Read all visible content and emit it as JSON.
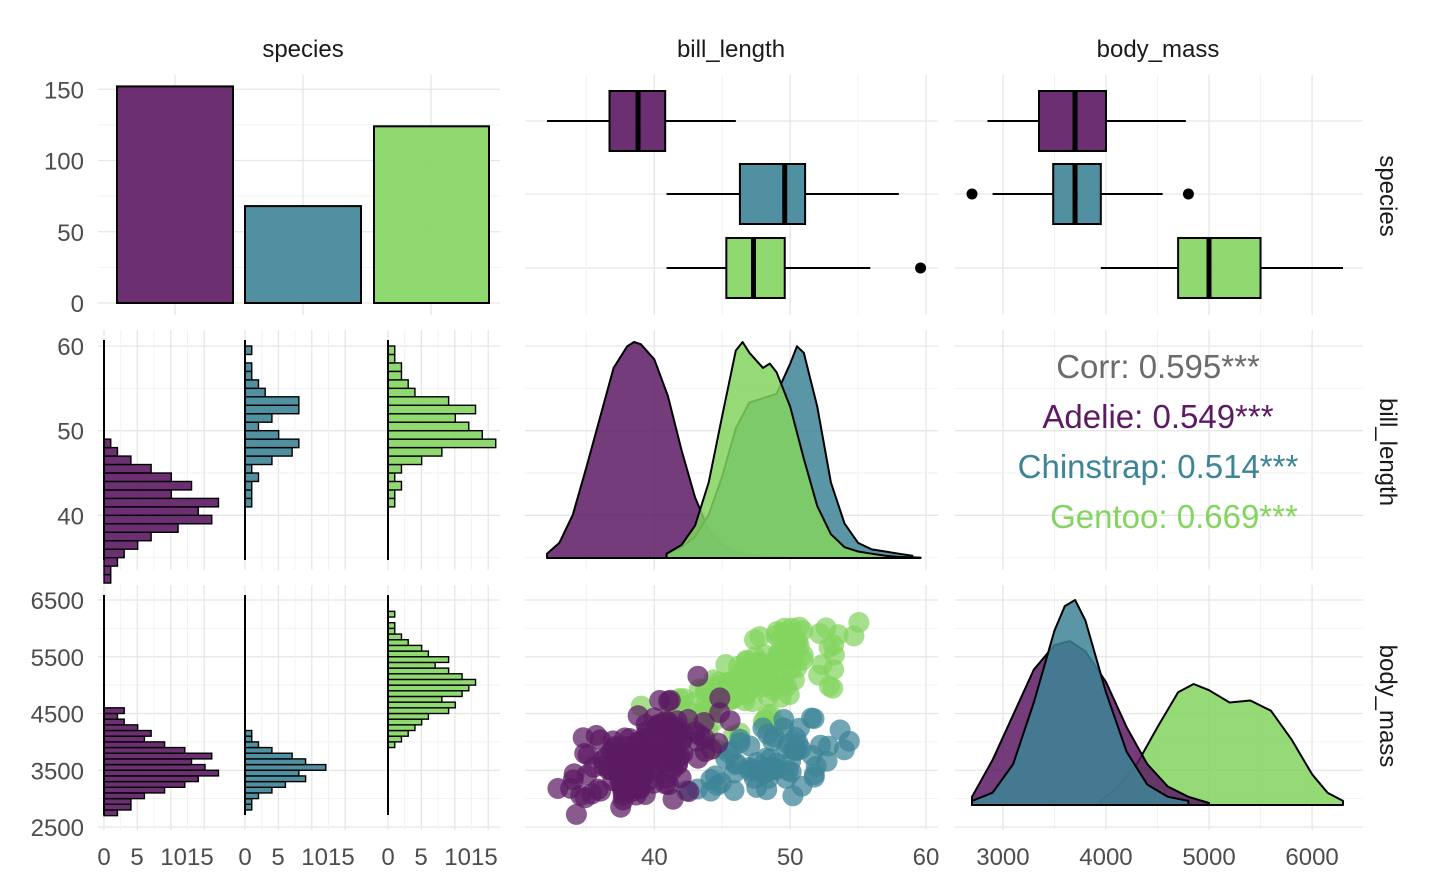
{
  "chart_data": {
    "type": "pairs",
    "variables": [
      "species",
      "bill_length",
      "body_mass"
    ],
    "species": [
      {
        "name": "Adelie",
        "color": "#5c1a63",
        "light": "#672b6e"
      },
      {
        "name": "Chinstrap",
        "color": "#3d8497",
        "light": "#4f8ea3"
      },
      {
        "name": "Gentoo",
        "color": "#84d460",
        "light": "#90d86b"
      }
    ],
    "species_counts": [
      152,
      68,
      124
    ],
    "y_ticks": {
      "species_count": [
        "0",
        "50",
        "100",
        "150"
      ],
      "bill_length": [
        "40",
        "50",
        "60"
      ],
      "body_mass": [
        "2500",
        "3500",
        "4500",
        "5500",
        "6500"
      ]
    },
    "x_ticks": {
      "hist": [
        "0",
        "5",
        "1015"
      ],
      "bill_length": [
        "40",
        "50",
        "60"
      ],
      "body_mass": [
        "3000",
        "4000",
        "5000",
        "6000"
      ]
    },
    "boxplots": {
      "bill_length": [
        {
          "species": "Adelie",
          "whisker_low": 32.1,
          "q1": 36.7,
          "median": 38.8,
          "q3": 40.8,
          "whisker_high": 46.0,
          "outliers": []
        },
        {
          "species": "Chinstrap",
          "whisker_low": 40.9,
          "q1": 46.3,
          "median": 49.6,
          "q3": 51.1,
          "whisker_high": 58.0,
          "outliers": []
        },
        {
          "species": "Gentoo",
          "whisker_low": 40.9,
          "q1": 45.3,
          "median": 47.3,
          "q3": 49.6,
          "whisker_high": 55.9,
          "outliers": [
            59.6
          ]
        }
      ],
      "body_mass": [
        {
          "species": "Adelie",
          "whisker_low": 2850,
          "q1": 3350,
          "median": 3700,
          "q3": 4000,
          "whisker_high": 4775,
          "outliers": []
        },
        {
          "species": "Chinstrap",
          "whisker_low": 2900,
          "q1": 3488,
          "median": 3700,
          "q3": 3950,
          "whisker_high": 4550,
          "outliers": [
            2700,
            4800
          ]
        },
        {
          "species": "Gentoo",
          "whisker_low": 3950,
          "q1": 4700,
          "median": 5000,
          "q3": 5500,
          "whisker_high": 6300,
          "outliers": []
        }
      ]
    },
    "correlation": {
      "overall": "Corr: 0.595***",
      "groups": [
        "Adelie: 0.549***",
        "Chinstrap: 0.514***",
        "Gentoo: 0.669***"
      ]
    },
    "histograms": {
      "bill_length": {
        "start": 32,
        "bin_width": 1,
        "Adelie": [
          1,
          1,
          2,
          3,
          5,
          7,
          11,
          16,
          14,
          17,
          10,
          13,
          10,
          7,
          4,
          2,
          1,
          0,
          0
        ],
        "Chinstrap": [
          0,
          0,
          0,
          0,
          0,
          0,
          0,
          0,
          0,
          1,
          1,
          1,
          2,
          1,
          4,
          7,
          8,
          5,
          2,
          4,
          8,
          8,
          3,
          2,
          1,
          1,
          0,
          1
        ],
        "Gentoo": [
          0,
          0,
          0,
          0,
          0,
          0,
          0,
          0,
          0,
          1,
          1,
          2,
          1,
          2,
          5,
          8,
          16,
          14,
          12,
          10,
          13,
          9,
          4,
          3,
          2,
          2,
          1,
          1
        ]
      },
      "body_mass": {
        "start": 2700,
        "bin_width": 100,
        "Adelie": [
          2,
          4,
          4,
          6,
          9,
          12,
          14,
          17,
          15,
          13,
          16,
          12,
          9,
          6,
          7,
          5,
          3,
          2,
          3,
          0
        ],
        "Chinstrap": [
          0,
          1,
          1,
          2,
          4,
          6,
          9,
          8,
          12,
          9,
          7,
          4,
          2,
          1,
          1,
          0
        ],
        "Gentoo": [
          0,
          0,
          0,
          0,
          0,
          0,
          0,
          0,
          0,
          0,
          0,
          0,
          1,
          2,
          3,
          4,
          5,
          6,
          9,
          10,
          8,
          11,
          12,
          13,
          11,
          9,
          7,
          9,
          6,
          5,
          3,
          2,
          1,
          1,
          0,
          1
        ]
      }
    },
    "densities": {
      "bill_length": [
        {
          "species": "Adelie",
          "x": [
            32.1,
            33,
            34,
            35,
            36,
            37,
            38,
            38.5,
            39,
            40,
            41,
            42,
            43,
            44,
            45,
            46,
            47,
            48,
            49,
            50
          ],
          "y": [
            0.02,
            0.07,
            0.2,
            0.42,
            0.65,
            0.88,
            0.98,
            1.0,
            0.99,
            0.92,
            0.75,
            0.5,
            0.28,
            0.13,
            0.06,
            0.03,
            0.015,
            0.008,
            0.004,
            0.002
          ]
        },
        {
          "species": "Chinstrap",
          "x": [
            40.9,
            42,
            43,
            44,
            45,
            46,
            47,
            48,
            49,
            50,
            50.5,
            51,
            52,
            53,
            54,
            55,
            56,
            57,
            58,
            59
          ],
          "y": [
            0.02,
            0.05,
            0.1,
            0.2,
            0.38,
            0.6,
            0.72,
            0.74,
            0.76,
            0.9,
            0.98,
            0.95,
            0.7,
            0.35,
            0.16,
            0.07,
            0.04,
            0.03,
            0.02,
            0.01
          ]
        },
        {
          "species": "Gentoo",
          "x": [
            40.9,
            42,
            43,
            44,
            45,
            46,
            46.5,
            47,
            48,
            48.5,
            49,
            50,
            51,
            52,
            53,
            54,
            55,
            56,
            57,
            58,
            59.6
          ],
          "y": [
            0.02,
            0.06,
            0.15,
            0.35,
            0.66,
            0.96,
            1.0,
            0.95,
            0.88,
            0.9,
            0.86,
            0.7,
            0.46,
            0.24,
            0.11,
            0.05,
            0.03,
            0.02,
            0.01,
            0.005,
            0.002
          ]
        }
      ],
      "body_mass": [
        {
          "species": "Adelie",
          "x": [
            2700,
            2900,
            3100,
            3300,
            3500,
            3650,
            3800,
            4000,
            4200,
            4400,
            4600,
            4800,
            5000
          ],
          "y": [
            0.04,
            0.22,
            0.44,
            0.66,
            0.78,
            0.8,
            0.75,
            0.6,
            0.38,
            0.2,
            0.09,
            0.04,
            0.01
          ]
        },
        {
          "species": "Chinstrap",
          "x": [
            2700,
            2900,
            3100,
            3300,
            3500,
            3600,
            3700,
            3800,
            4000,
            4200,
            4400,
            4600,
            4800
          ],
          "y": [
            0.02,
            0.06,
            0.2,
            0.5,
            0.85,
            0.97,
            1.0,
            0.9,
            0.55,
            0.26,
            0.1,
            0.04,
            0.02
          ]
        },
        {
          "species": "Gentoo",
          "x": [
            3950,
            4100,
            4300,
            4500,
            4700,
            4850,
            5000,
            5200,
            5400,
            5600,
            5800,
            6000,
            6150,
            6300
          ],
          "y": [
            0.02,
            0.08,
            0.2,
            0.38,
            0.55,
            0.59,
            0.56,
            0.5,
            0.51,
            0.46,
            0.32,
            0.15,
            0.06,
            0.02
          ]
        }
      ]
    },
    "scatter": {
      "x_variable": "bill_length",
      "y_variable": "body_mass",
      "groups": [
        {
          "species": "Adelie",
          "x_mean": 38.8,
          "x_sd": 2.6,
          "y_mean": 3700,
          "y_sd": 460,
          "n": 152,
          "r": 0.549
        },
        {
          "species": "Chinstrap",
          "x_mean": 48.8,
          "x_sd": 3.3,
          "y_mean": 3733,
          "y_sd": 380,
          "n": 68,
          "r": 0.514
        },
        {
          "species": "Gentoo",
          "x_mean": 47.5,
          "x_sd": 3.1,
          "y_mean": 5076,
          "y_sd": 500,
          "n": 124,
          "r": 0.669
        }
      ]
    }
  }
}
